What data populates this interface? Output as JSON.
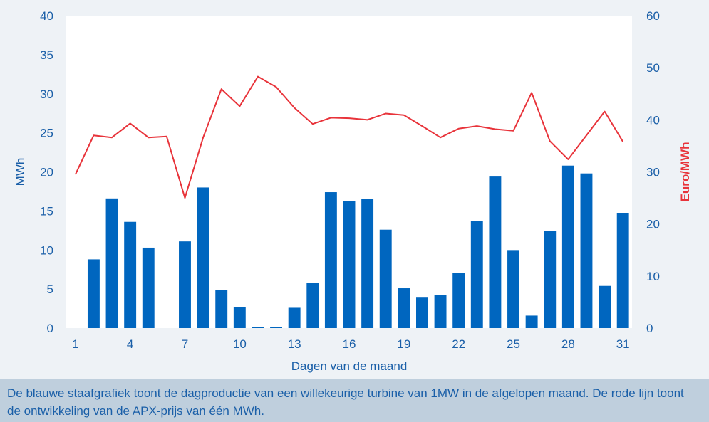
{
  "caption": "De blauwe staafgrafiek toont de dagproductie van een willekeurige turbine van 1MW in de afgelopen maand. De rode lijn toont de ontwikkeling van de APX-prijs van één MWh.",
  "colors": {
    "background": "#eef2f6",
    "plot_area": "#ffffff",
    "bars": "#0066bf",
    "line": "#e8333a",
    "axis_text": "#1a5fa8",
    "caption_bg": "#bfcfdd"
  },
  "chart_data": {
    "type": "bar",
    "xlabel": "Dagen van de maand",
    "ylabel": "MWh",
    "y2label": "Euro/MWh",
    "ylim": [
      0,
      40
    ],
    "y2lim": [
      0,
      60
    ],
    "yticks": [
      0,
      5,
      10,
      15,
      20,
      25,
      30,
      35,
      40
    ],
    "y2ticks": [
      0,
      10,
      20,
      30,
      40,
      50,
      60
    ],
    "xticks": [
      1,
      4,
      7,
      10,
      13,
      16,
      19,
      22,
      25,
      28,
      31
    ],
    "grid": false,
    "days": [
      1,
      2,
      3,
      4,
      5,
      6,
      7,
      8,
      9,
      10,
      11,
      12,
      13,
      14,
      15,
      16,
      17,
      18,
      19,
      20,
      21,
      22,
      23,
      24,
      25,
      26,
      27,
      28,
      29,
      30,
      31
    ],
    "series": [
      {
        "type": "bar",
        "axis": "left",
        "values": [
          0,
          8.8,
          16.6,
          13.6,
          10.3,
          0,
          11.1,
          18.0,
          4.9,
          2.7,
          0.15,
          0.15,
          2.6,
          5.8,
          17.4,
          16.3,
          16.5,
          12.6,
          5.1,
          3.9,
          4.2,
          7.1,
          13.7,
          19.4,
          9.9,
          1.6,
          12.4,
          20.8,
          19.8,
          5.4,
          14.7
        ]
      },
      {
        "type": "line",
        "axis": "right",
        "values": [
          29.5,
          37.0,
          36.6,
          39.3,
          36.6,
          36.8,
          25.0,
          36.6,
          45.9,
          42.6,
          48.3,
          46.3,
          42.3,
          39.2,
          40.4,
          40.3,
          40.0,
          41.2,
          40.9,
          38.8,
          36.6,
          38.3,
          38.8,
          38.2,
          37.9,
          45.2,
          35.9,
          32.4,
          37.0,
          41.6,
          35.8
        ]
      }
    ]
  }
}
